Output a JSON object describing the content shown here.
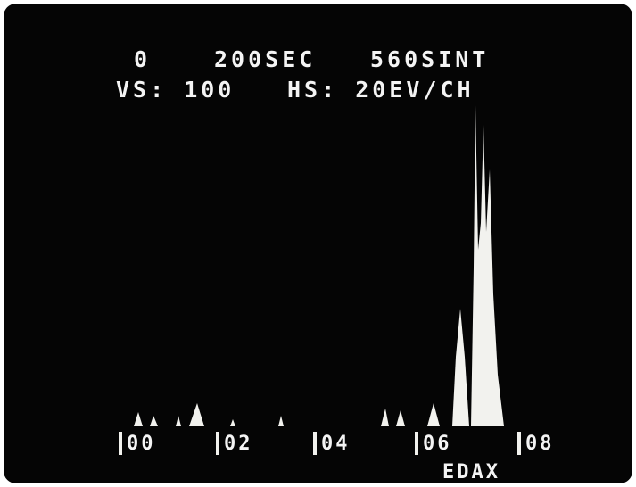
{
  "header": {
    "line1": [
      "0",
      "200SEC",
      "560SINT"
    ],
    "line2": [
      "VS: 100",
      "HS: 20EV/CH"
    ]
  },
  "axis_labels": [
    "00",
    "02",
    "04",
    "06",
    "08"
  ],
  "footer": "EDAX"
}
